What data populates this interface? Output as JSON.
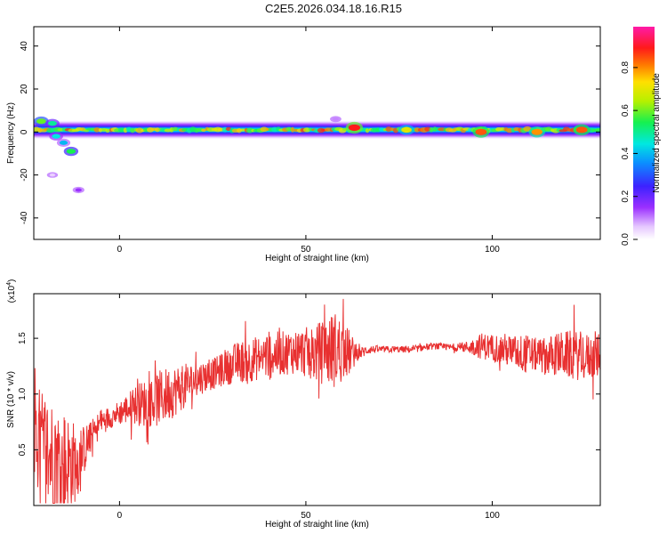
{
  "title": "C2E5.2026.034.18.16.R15",
  "colors": {
    "snr_line": "#e83030",
    "background": "#ffffff",
    "axes": "#000000"
  },
  "chart_data": [
    {
      "type": "heatmap",
      "xlabel": "Height of straight line (km)",
      "ylabel": "Frequency (Hz)",
      "xlim": [
        -23,
        129
      ],
      "ylim": [
        -50,
        49
      ],
      "x_ticks": [
        0,
        50,
        100
      ],
      "y_ticks": [
        -40,
        -20,
        0,
        20,
        40
      ],
      "colorbar": {
        "label": "Normalized spectral amplitude",
        "range": [
          0,
          0.99
        ],
        "ticks": [
          "0.0",
          "0.2",
          "0.4",
          "0.6",
          "0.8"
        ],
        "palette": "rainbow (white, violet, blue, cyan, green, yellow, orange, red, magenta)"
      },
      "band": {
        "center_frequency_hz": 1,
        "half_width_hz": 3,
        "x_start_km": -23,
        "x_end_km": 129
      },
      "features": [
        {
          "x_km": -21,
          "y_hz": 5,
          "amplitude": 0.6
        },
        {
          "x_km": -18,
          "y_hz": 4,
          "amplitude": 0.5
        },
        {
          "x_km": -17,
          "y_hz": -2,
          "amplitude": 0.45
        },
        {
          "x_km": -15,
          "y_hz": -5,
          "amplitude": 0.4
        },
        {
          "x_km": -13,
          "y_hz": -9,
          "amplitude": 0.55
        },
        {
          "x_km": -18,
          "y_hz": -20,
          "amplitude": 0.05
        },
        {
          "x_km": -11,
          "y_hz": -27,
          "amplitude": 0.15
        },
        {
          "x_km": 58,
          "y_hz": 6,
          "amplitude": 0.1
        },
        {
          "x_km": 63,
          "y_hz": 2,
          "amplitude": 0.9
        },
        {
          "x_km": 77,
          "y_hz": 1,
          "amplitude": 0.7
        },
        {
          "x_km": 97,
          "y_hz": 0,
          "amplitude": 0.85
        },
        {
          "x_km": 112,
          "y_hz": 0,
          "amplitude": 0.8
        },
        {
          "x_km": 124,
          "y_hz": 1,
          "amplitude": 0.85
        }
      ]
    },
    {
      "type": "line",
      "xlabel": "Height of straight line (km)",
      "ylabel": "SNR (10 * v/v)",
      "y_multiplier": "(x10⁴)",
      "multiplier_base": "(x10",
      "multiplier_exp": "4",
      "multiplier_close": ")",
      "xlim": [
        -23,
        129
      ],
      "ylim": [
        0,
        1.9
      ],
      "x_ticks": [
        0,
        50,
        100
      ],
      "y_ticks": [
        0.5,
        1.0,
        1.5
      ],
      "y_tick_labels": [
        "0.5",
        "1.0",
        "1.5"
      ],
      "series": [
        {
          "x": [
            -23,
            -20,
            -17,
            -14,
            -11,
            -8,
            -5,
            -2,
            1,
            4,
            7,
            10,
            13,
            16,
            19,
            22,
            25,
            28,
            31,
            34,
            37,
            40,
            43,
            46,
            49,
            52,
            55,
            58,
            61,
            64,
            67,
            70,
            73,
            76,
            79,
            82,
            85,
            88,
            91,
            94,
            97,
            100,
            103,
            106,
            109,
            112,
            115,
            118,
            121,
            124,
            127,
            129
          ],
          "values": [
            0.6,
            0.5,
            0.4,
            0.35,
            0.4,
            0.6,
            0.75,
            0.8,
            0.85,
            0.9,
            0.92,
            0.95,
            1.0,
            1.05,
            1.1,
            1.15,
            1.18,
            1.22,
            1.28,
            1.3,
            1.32,
            1.35,
            1.36,
            1.38,
            1.38,
            1.36,
            1.38,
            1.4,
            1.37,
            1.36,
            1.4,
            1.4,
            1.4,
            1.4,
            1.4,
            1.42,
            1.43,
            1.42,
            1.42,
            1.42,
            1.43,
            1.42,
            1.4,
            1.38,
            1.36,
            1.35,
            1.34,
            1.36,
            1.35,
            1.34,
            1.33,
            1.34
          ],
          "noise": [
            0.5,
            0.55,
            0.55,
            0.5,
            0.3,
            0.15,
            0.12,
            0.1,
            0.12,
            0.18,
            0.22,
            0.25,
            0.25,
            0.22,
            0.18,
            0.15,
            0.14,
            0.15,
            0.18,
            0.2,
            0.2,
            0.22,
            0.2,
            0.2,
            0.22,
            0.25,
            0.3,
            0.35,
            0.25,
            0.06,
            0.04,
            0.03,
            0.03,
            0.03,
            0.03,
            0.03,
            0.03,
            0.03,
            0.04,
            0.06,
            0.12,
            0.12,
            0.15,
            0.15,
            0.18,
            0.15,
            0.18,
            0.2,
            0.22,
            0.22,
            0.2,
            0.2
          ]
        }
      ]
    }
  ]
}
